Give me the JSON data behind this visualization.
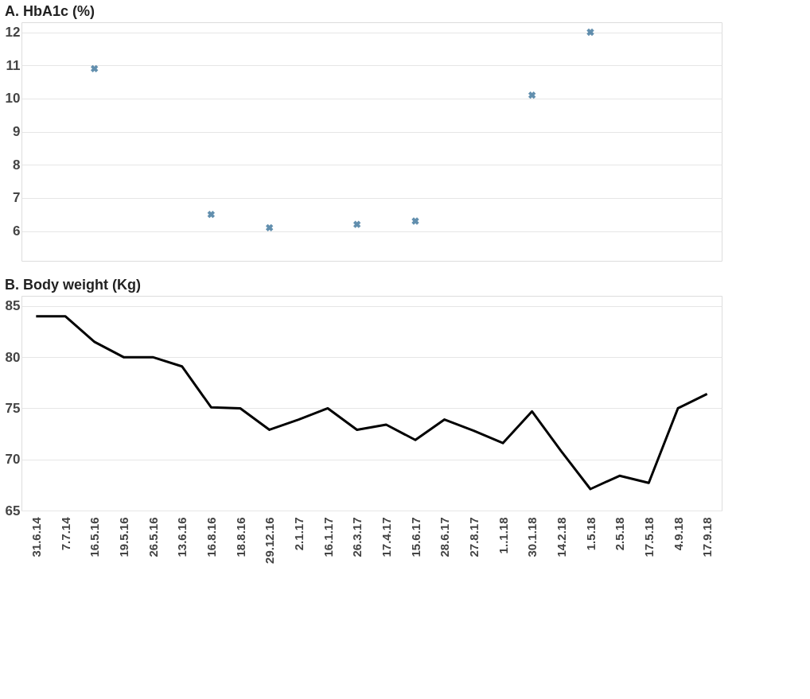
{
  "chart_data": [
    {
      "type": "scatter",
      "title": "A. HbA1c (%)",
      "categories": [
        "31.6.14",
        "7.7.14",
        "16.5.16",
        "19.5.16",
        "26.5.16",
        "13.6.16",
        "16.8.16",
        "18.8.16",
        "29.12.16",
        "2.1.17",
        "16.1.17",
        "26.3.17",
        "17.4.17",
        "15.6.17",
        "28.6.17",
        "27.8.17",
        "1..1.18",
        "30.1.18",
        "14.2.18",
        "1.5.18",
        "2.5.18",
        "17.5.18",
        "4.9.18",
        "17.9.18"
      ],
      "series": [
        {
          "color": "#1f5f8b",
          "values": [
            null,
            null,
            10.9,
            null,
            null,
            null,
            6.5,
            null,
            6.1,
            null,
            null,
            6.2,
            null,
            6.3,
            null,
            null,
            null,
            10.1,
            null,
            12.0,
            null,
            null,
            null,
            null
          ]
        }
      ],
      "ylim": [
        5.1,
        12.3
      ],
      "yticks": [
        6,
        7,
        8,
        9,
        10,
        11,
        12
      ],
      "grid": "y",
      "marker": "cross",
      "tick_labels": "y"
    },
    {
      "type": "line",
      "title": "B. Body weight (Kg)",
      "categories": [
        "31.6.14",
        "7.7.14",
        "16.5.16",
        "19.5.16",
        "26.5.16",
        "13.6.16",
        "16.8.16",
        "18.8.16",
        "29.12.16",
        "2.1.17",
        "16.1.17",
        "26.3.17",
        "17.4.17",
        "15.6.17",
        "28.6.17",
        "27.8.17",
        "1..1.18",
        "30.1.18",
        "14.2.18",
        "1.5.18",
        "2.5.18",
        "17.5.18",
        "4.9.18",
        "17.9.18"
      ],
      "series": [
        {
          "color": "#000000",
          "values": [
            84.0,
            84.0,
            81.5,
            80.0,
            80.0,
            79.1,
            75.1,
            75.0,
            72.9,
            73.9,
            75.0,
            72.9,
            73.4,
            71.9,
            73.9,
            72.8,
            71.6,
            74.7,
            70.8,
            67.1,
            68.4,
            67.7,
            75.0,
            76.4
          ]
        }
      ],
      "ylim": [
        65,
        86
      ],
      "yticks": [
        65,
        70,
        75,
        80,
        85
      ],
      "grid": "y",
      "marker": "none",
      "line_style": "solid"
    }
  ]
}
